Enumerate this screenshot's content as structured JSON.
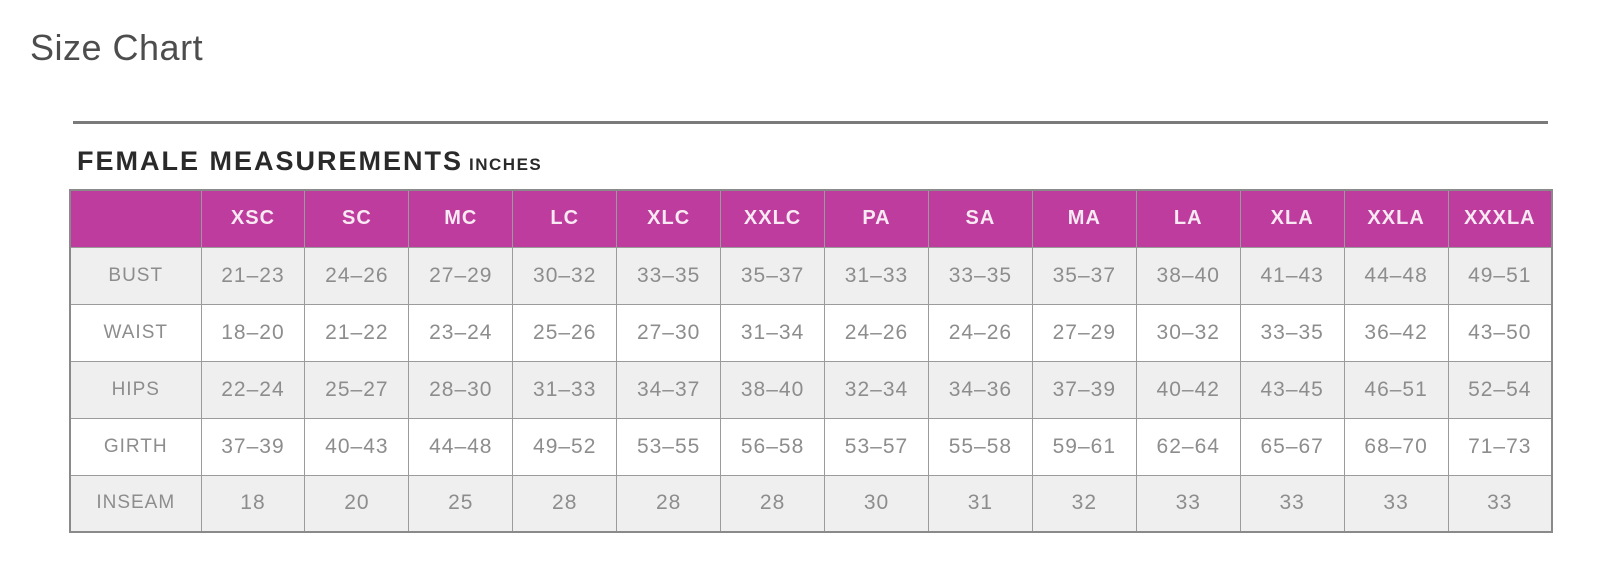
{
  "page": {
    "title": "Size Chart"
  },
  "section": {
    "heading": "FEMALE MEASUREMENTS",
    "unit": "INCHES"
  },
  "colors": {
    "header_bg": "#be3c9d",
    "header_text": "#f8e9f3",
    "row_alt_bg": "#efefef",
    "row_bg": "#ffffff",
    "border": "#9b9b9b",
    "cell_text": "#8d8d8d",
    "title_text": "#4d4d4d",
    "heading_text": "#2a2a2a"
  },
  "chart_data": {
    "type": "table",
    "title": "FEMALE MEASUREMENTS INCHES",
    "columns": [
      "",
      "XSC",
      "SC",
      "MC",
      "LC",
      "XLC",
      "XXLC",
      "PA",
      "SA",
      "MA",
      "LA",
      "XLA",
      "XXLA",
      "XXXLA"
    ],
    "rows": [
      {
        "label": "BUST",
        "values": [
          "21–23",
          "24–26",
          "27–29",
          "30–32",
          "33–35",
          "35–37",
          "31–33",
          "33–35",
          "35–37",
          "38–40",
          "41–43",
          "44–48",
          "49–51"
        ]
      },
      {
        "label": "WAIST",
        "values": [
          "18–20",
          "21–22",
          "23–24",
          "25–26",
          "27–30",
          "31–34",
          "24–26",
          "24–26",
          "27–29",
          "30–32",
          "33–35",
          "36–42",
          "43–50"
        ]
      },
      {
        "label": "HIPS",
        "values": [
          "22–24",
          "25–27",
          "28–30",
          "31–33",
          "34–37",
          "38–40",
          "32–34",
          "34–36",
          "37–39",
          "40–42",
          "43–45",
          "46–51",
          "52–54"
        ]
      },
      {
        "label": "GIRTH",
        "values": [
          "37–39",
          "40–43",
          "44–48",
          "49–52",
          "53–55",
          "56–58",
          "53–57",
          "55–58",
          "59–61",
          "62–64",
          "65–67",
          "68–70",
          "71–73"
        ]
      },
      {
        "label": "INSEAM",
        "values": [
          "18",
          "20",
          "25",
          "28",
          "28",
          "28",
          "30",
          "31",
          "32",
          "33",
          "33",
          "33",
          "33"
        ]
      }
    ]
  }
}
